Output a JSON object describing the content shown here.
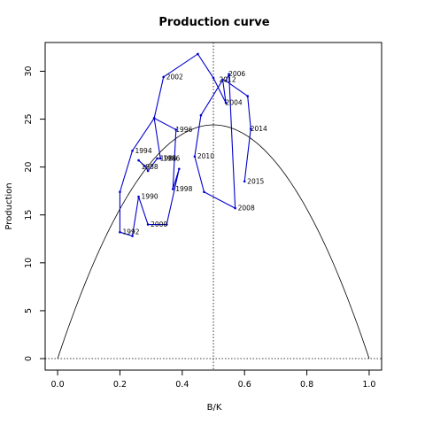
{
  "chart_data": {
    "type": "line",
    "title": "Production curve",
    "xlabel": "B/K",
    "ylabel": "Production",
    "xlim": [
      -0.04,
      1.04
    ],
    "ylim": [
      -1.2,
      33.0
    ],
    "xticks": [
      0.0,
      0.2,
      0.4,
      0.6,
      0.8,
      1.0
    ],
    "xtick_labels": [
      "0.0",
      "0.2",
      "0.4",
      "0.6",
      "0.8",
      "1.0"
    ],
    "yticks": [
      0,
      5,
      10,
      15,
      20,
      25,
      30
    ],
    "ytick_labels": [
      "0",
      "5",
      "10",
      "15",
      "20",
      "25",
      "30"
    ],
    "grid": false,
    "colors": {
      "trajectory": "#0000cd",
      "curve": "#000000",
      "reference": "#000000"
    },
    "reference_lines": {
      "vertical_x": 0.5,
      "horizontal_y": 0
    },
    "production_curve": {
      "formula": "4 * msy * x * (1 - x)",
      "msy": 24.4
    },
    "series": [
      {
        "x": [
          0.26,
          0.28,
          0.29,
          0.32,
          0.33,
          0.31,
          0.24,
          0.2,
          0.2,
          0.24,
          0.26,
          0.29,
          0.35,
          0.39,
          0.37,
          0.38,
          0.31,
          0.34,
          0.45,
          0.5,
          0.54,
          0.53,
          0.46,
          0.44,
          0.47,
          0.57,
          0.55,
          0.54,
          0.61,
          0.62,
          0.6
        ],
        "y": [
          20.7,
          20.1,
          19.6,
          20.9,
          20.9,
          25.1,
          21.7,
          17.4,
          13.2,
          12.8,
          16.9,
          14.0,
          14.0,
          19.8,
          17.7,
          23.9,
          25.1,
          29.4,
          31.8,
          29.3,
          26.7,
          29.1,
          25.4,
          21.1,
          17.4,
          15.7,
          29.7,
          29.0,
          27.4,
          24.0,
          18.5
        ]
      }
    ],
    "point_labels": [
      {
        "text": "1986",
        "x": 0.32,
        "y": 20.9
      },
      {
        "text": "1986",
        "x": 0.33,
        "y": 20.9
      },
      {
        "text": "1988",
        "x": 0.26,
        "y": 20.0
      },
      {
        "text": "1990",
        "x": 0.26,
        "y": 16.9
      },
      {
        "text": "1992",
        "x": 0.2,
        "y": 13.2
      },
      {
        "text": "1994",
        "x": 0.24,
        "y": 21.7
      },
      {
        "text": "1996",
        "x": 0.37,
        "y": 23.9
      },
      {
        "text": "1998",
        "x": 0.37,
        "y": 17.7
      },
      {
        "text": "2000",
        "x": 0.29,
        "y": 14.0
      },
      {
        "text": "2002",
        "x": 0.34,
        "y": 29.4
      },
      {
        "text": "2004",
        "x": 0.53,
        "y": 26.7
      },
      {
        "text": "2006",
        "x": 0.54,
        "y": 29.7
      },
      {
        "text": "2008",
        "x": 0.57,
        "y": 15.7
      },
      {
        "text": "2010",
        "x": 0.44,
        "y": 21.1
      },
      {
        "text": "2012",
        "x": 0.51,
        "y": 29.1
      },
      {
        "text": "2014",
        "x": 0.61,
        "y": 24.0
      },
      {
        "text": "2015",
        "x": 0.6,
        "y": 18.5
      }
    ]
  }
}
